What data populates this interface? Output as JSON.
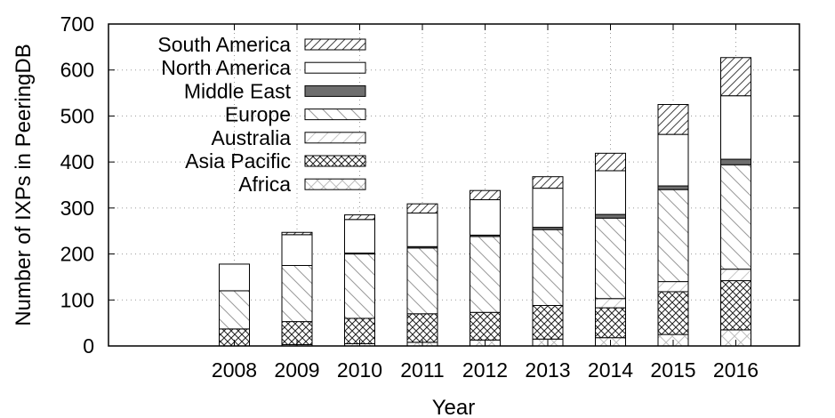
{
  "chart_data": {
    "type": "bar",
    "stacked": true,
    "xlabel": "Year",
    "ylabel": "Number of IXPs in PeeringDB",
    "ylim": [
      0,
      700
    ],
    "yticks": [
      0,
      100,
      200,
      300,
      400,
      500,
      600,
      700
    ],
    "grid": true,
    "legend_position": "top-left",
    "categories": [
      "2008",
      "2009",
      "2010",
      "2011",
      "2012",
      "2013",
      "2014",
      "2015",
      "2016"
    ],
    "series": [
      {
        "name": "Africa",
        "pattern": "crosshatch-light",
        "values": [
          0,
          3,
          5,
          8,
          13,
          15,
          18,
          25,
          35
        ]
      },
      {
        "name": "Asia Pacific",
        "pattern": "crosshatch-dense",
        "values": [
          37,
          50,
          55,
          62,
          60,
          73,
          65,
          93,
          107
        ]
      },
      {
        "name": "Australia",
        "pattern": "slash-light",
        "values": [
          0,
          0,
          0,
          0,
          0,
          0,
          20,
          22,
          25
        ]
      },
      {
        "name": "Europe",
        "pattern": "backslash",
        "values": [
          83,
          122,
          140,
          143,
          165,
          165,
          175,
          200,
          227
        ]
      },
      {
        "name": "Middle East",
        "pattern": "solid-gray",
        "values": [
          0,
          0,
          2,
          3,
          3,
          5,
          8,
          8,
          12
        ]
      },
      {
        "name": "North America",
        "pattern": "empty",
        "values": [
          58,
          67,
          73,
          73,
          77,
          85,
          95,
          112,
          138
        ]
      },
      {
        "name": "South America",
        "pattern": "slash-dense",
        "values": [
          0,
          5,
          10,
          20,
          20,
          25,
          38,
          65,
          83
        ]
      }
    ],
    "legend_order": [
      "South America",
      "North America",
      "Middle East",
      "Europe",
      "Australia",
      "Asia Pacific",
      "Africa"
    ]
  }
}
